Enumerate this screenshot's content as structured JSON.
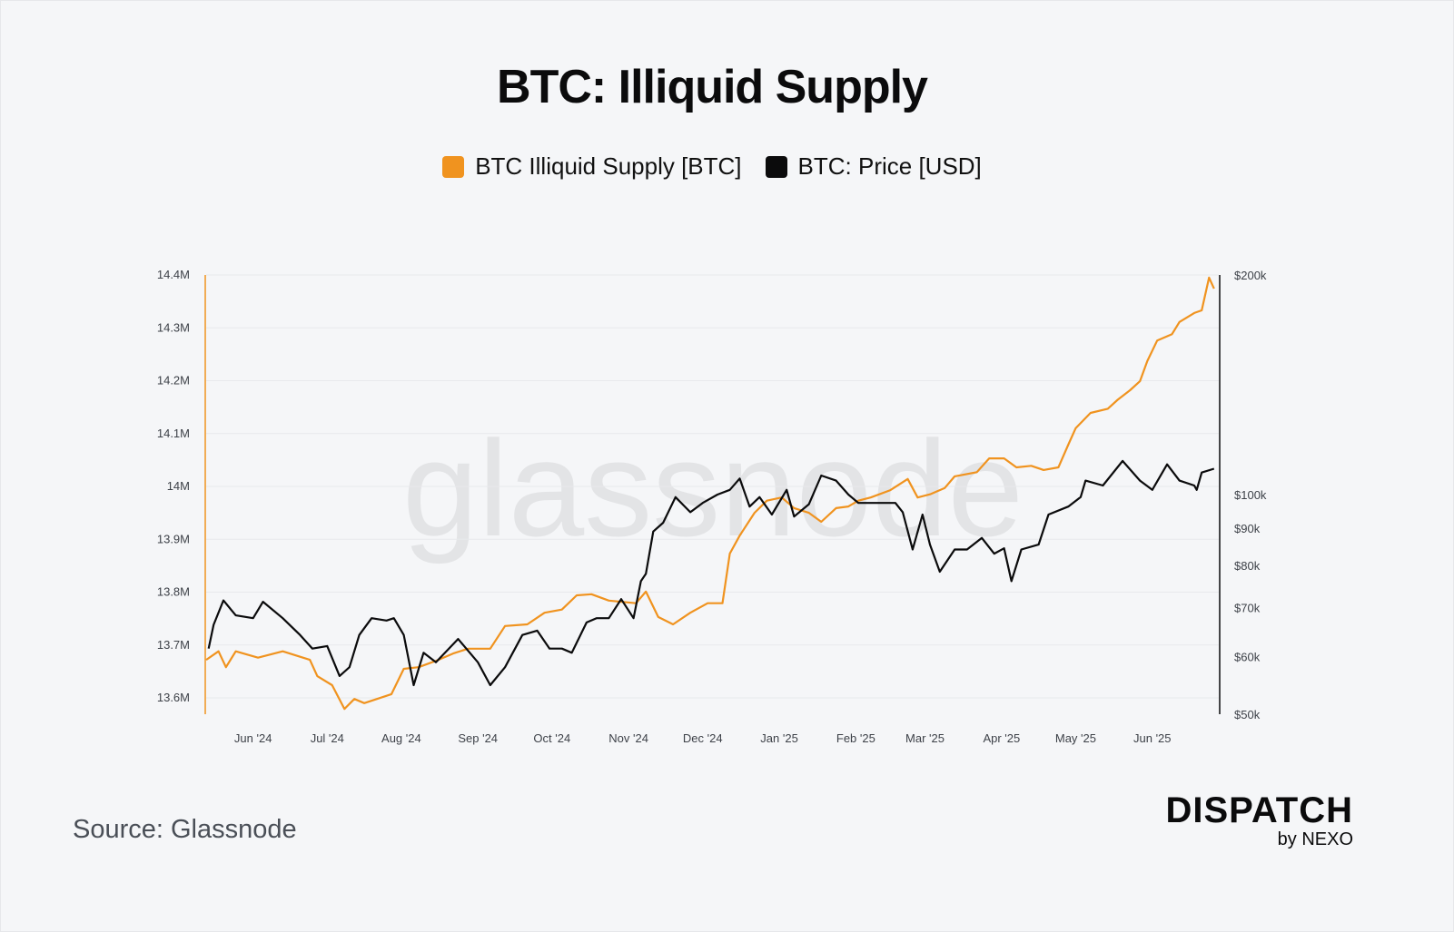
{
  "chart_data": {
    "type": "line",
    "title": "BTC: Illiquid Supply",
    "x_unit": "days since 2024-05-13",
    "watermark": "glassnode",
    "legend_position": "top-center",
    "grid": true,
    "x_ticks": [
      {
        "label": "Jun '24",
        "day": 19
      },
      {
        "label": "Jul '24",
        "day": 49
      },
      {
        "label": "Aug '24",
        "day": 79
      },
      {
        "label": "Sep '24",
        "day": 110
      },
      {
        "label": "Oct '24",
        "day": 140
      },
      {
        "label": "Nov '24",
        "day": 171
      },
      {
        "label": "Dec '24",
        "day": 201
      },
      {
        "label": "Jan '25",
        "day": 232
      },
      {
        "label": "Feb '25",
        "day": 263
      },
      {
        "label": "Mar '25",
        "day": 291
      },
      {
        "label": "Apr '25",
        "day": 322
      },
      {
        "label": "May '25",
        "day": 352
      },
      {
        "label": "Jun '25",
        "day": 383
      }
    ],
    "y_left": {
      "range": [
        13.569,
        14.4
      ],
      "ticks": [
        {
          "label": "14.4M",
          "value": 14.4
        },
        {
          "label": "14.3M",
          "value": 14.3
        },
        {
          "label": "14.2M",
          "value": 14.2
        },
        {
          "label": "14.1M",
          "value": 14.1
        },
        {
          "label": "14M",
          "value": 14.0
        },
        {
          "label": "13.9M",
          "value": 13.9
        },
        {
          "label": "13.8M",
          "value": 13.8
        },
        {
          "label": "13.7M",
          "value": 13.7
        },
        {
          "label": "13.6M",
          "value": 13.6
        }
      ]
    },
    "y_right": {
      "scale": "log",
      "range": [
        50000,
        200000
      ],
      "ticks": [
        {
          "label": "$200k",
          "value": 200000
        },
        {
          "label": "$100k",
          "value": 100000
        },
        {
          "label": "$90k",
          "value": 90000
        },
        {
          "label": "$80k",
          "value": 80000
        },
        {
          "label": "$70k",
          "value": 70000
        },
        {
          "label": "$60k",
          "value": 60000
        },
        {
          "label": "$50k",
          "value": 50000
        }
      ]
    },
    "series": [
      {
        "name": "BTC Illiquid Supply [BTC]",
        "color": "#f0931f",
        "axis": "left",
        "unit": "M BTC",
        "points": [
          [
            0,
            13.672
          ],
          [
            5,
            13.688
          ],
          [
            8,
            13.658
          ],
          [
            12,
            13.688
          ],
          [
            21,
            13.676
          ],
          [
            31,
            13.688
          ],
          [
            42,
            13.672
          ],
          [
            45,
            13.641
          ],
          [
            51,
            13.624
          ],
          [
            56,
            13.579
          ],
          [
            60,
            13.598
          ],
          [
            64,
            13.59
          ],
          [
            75,
            13.607
          ],
          [
            80,
            13.655
          ],
          [
            86,
            13.658
          ],
          [
            93,
            13.67
          ],
          [
            100,
            13.684
          ],
          [
            106,
            13.693
          ],
          [
            115,
            13.693
          ],
          [
            121,
            13.736
          ],
          [
            130,
            13.739
          ],
          [
            137,
            13.761
          ],
          [
            144,
            13.767
          ],
          [
            150,
            13.794
          ],
          [
            156,
            13.796
          ],
          [
            163,
            13.784
          ],
          [
            174,
            13.779
          ],
          [
            178,
            13.801
          ],
          [
            183,
            13.753
          ],
          [
            189,
            13.739
          ],
          [
            196,
            13.761
          ],
          [
            203,
            13.779
          ],
          [
            209,
            13.779
          ],
          [
            212,
            13.873
          ],
          [
            216,
            13.907
          ],
          [
            222,
            13.95
          ],
          [
            227,
            13.973
          ],
          [
            233,
            13.979
          ],
          [
            238,
            13.959
          ],
          [
            244,
            13.95
          ],
          [
            249,
            13.933
          ],
          [
            255,
            13.959
          ],
          [
            260,
            13.962
          ],
          [
            264,
            13.973
          ],
          [
            269,
            13.979
          ],
          [
            277,
            13.993
          ],
          [
            284,
            14.014
          ],
          [
            288,
            13.979
          ],
          [
            293,
            13.985
          ],
          [
            299,
            13.997
          ],
          [
            303,
            14.019
          ],
          [
            312,
            14.027
          ],
          [
            317,
            14.053
          ],
          [
            323,
            14.053
          ],
          [
            328,
            14.036
          ],
          [
            334,
            14.039
          ],
          [
            339,
            14.031
          ],
          [
            345,
            14.036
          ],
          [
            349,
            14.079
          ],
          [
            352,
            14.11
          ],
          [
            358,
            14.139
          ],
          [
            365,
            14.147
          ],
          [
            369,
            14.164
          ],
          [
            374,
            14.182
          ],
          [
            378,
            14.199
          ],
          [
            381,
            14.237
          ],
          [
            385,
            14.276
          ],
          [
            391,
            14.288
          ],
          [
            394,
            14.311
          ],
          [
            400,
            14.328
          ],
          [
            403,
            14.333
          ],
          [
            406,
            14.395
          ],
          [
            408,
            14.374
          ]
        ]
      },
      {
        "name": "BTC: Price [USD]",
        "color": "#0b0b0c",
        "axis": "right",
        "unit": "USD",
        "points": [
          [
            1,
            61500
          ],
          [
            3,
            66300
          ],
          [
            7,
            71600
          ],
          [
            12,
            68300
          ],
          [
            19,
            67700
          ],
          [
            23,
            71300
          ],
          [
            31,
            67700
          ],
          [
            38,
            64200
          ],
          [
            43,
            61500
          ],
          [
            49,
            62000
          ],
          [
            54,
            56400
          ],
          [
            58,
            58000
          ],
          [
            62,
            64200
          ],
          [
            67,
            67700
          ],
          [
            73,
            67200
          ],
          [
            76,
            67700
          ],
          [
            80,
            64200
          ],
          [
            84,
            54800
          ],
          [
            88,
            60700
          ],
          [
            93,
            58900
          ],
          [
            102,
            63400
          ],
          [
            110,
            58900
          ],
          [
            115,
            54800
          ],
          [
            121,
            58000
          ],
          [
            128,
            64200
          ],
          [
            134,
            65100
          ],
          [
            139,
            61500
          ],
          [
            144,
            61500
          ],
          [
            148,
            60700
          ],
          [
            154,
            66800
          ],
          [
            158,
            67700
          ],
          [
            163,
            67700
          ],
          [
            168,
            71900
          ],
          [
            173,
            67700
          ],
          [
            176,
            76100
          ],
          [
            178,
            77900
          ],
          [
            181,
            89000
          ],
          [
            185,
            91500
          ],
          [
            190,
            99200
          ],
          [
            196,
            94600
          ],
          [
            201,
            97400
          ],
          [
            207,
            100000
          ],
          [
            212,
            101500
          ],
          [
            216,
            105200
          ],
          [
            220,
            96300
          ],
          [
            224,
            99200
          ],
          [
            229,
            93900
          ],
          [
            235,
            101500
          ],
          [
            238,
            93300
          ],
          [
            244,
            97000
          ],
          [
            249,
            106200
          ],
          [
            255,
            104500
          ],
          [
            260,
            100000
          ],
          [
            264,
            97400
          ],
          [
            269,
            97400
          ],
          [
            279,
            97400
          ],
          [
            282,
            94600
          ],
          [
            286,
            84100
          ],
          [
            290,
            93900
          ],
          [
            293,
            85400
          ],
          [
            297,
            78400
          ],
          [
            303,
            84100
          ],
          [
            308,
            84100
          ],
          [
            314,
            87200
          ],
          [
            319,
            83000
          ],
          [
            323,
            84400
          ],
          [
            326,
            76100
          ],
          [
            330,
            84100
          ],
          [
            337,
            85400
          ],
          [
            341,
            93900
          ],
          [
            349,
            96300
          ],
          [
            354,
            99200
          ],
          [
            356,
            104500
          ],
          [
            363,
            102900
          ],
          [
            371,
            111200
          ],
          [
            378,
            104500
          ],
          [
            383,
            101500
          ],
          [
            389,
            110000
          ],
          [
            394,
            104500
          ],
          [
            400,
            102900
          ],
          [
            401,
            101500
          ],
          [
            403,
            107200
          ],
          [
            408,
            108500
          ]
        ]
      }
    ]
  },
  "footer": {
    "source": "Source: Glassnode",
    "logo_main": "DISPATCH",
    "logo_sub": "by NEXO"
  }
}
